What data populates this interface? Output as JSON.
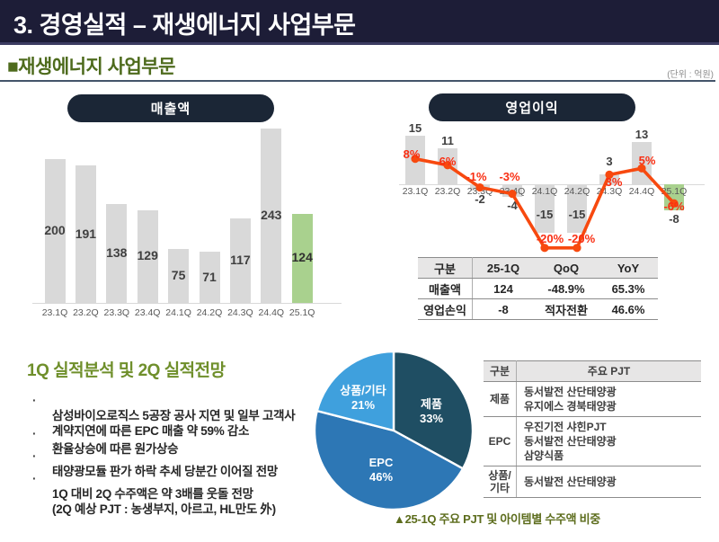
{
  "header": {
    "title": "3. 경영실적 – 재생에너지 사업부문"
  },
  "section": {
    "title": "■재생에너지 사업부문",
    "unit_note": "(단위 : 억원)"
  },
  "chart_data": [
    {
      "type": "bar",
      "name": "revenue",
      "title": "매출액",
      "categories": [
        "23.1Q",
        "23.2Q",
        "23.3Q",
        "23.4Q",
        "24.1Q",
        "24.2Q",
        "24.3Q",
        "24.4Q",
        "25.1Q"
      ],
      "values": [
        200,
        191,
        138,
        129,
        75,
        71,
        117,
        243,
        124
      ],
      "highlight_index": 8,
      "bar_color": "#d9d9d9",
      "highlight_color": "#a9d18e",
      "ylim": [
        0,
        260
      ]
    },
    {
      "type": "bar+line",
      "name": "operating-profit",
      "title": "영업이익",
      "categories": [
        "23.1Q",
        "23.2Q",
        "23.3Q",
        "23.4Q",
        "24.1Q",
        "24.2Q",
        "24.3Q",
        "24.4Q",
        "25.1Q"
      ],
      "series": [
        {
          "name": "operating-profit-bars",
          "type": "bar",
          "values": [
            15,
            11,
            -2,
            -4,
            -15,
            -15,
            3,
            13,
            -8
          ]
        },
        {
          "name": "operating-margin-line",
          "type": "line",
          "values": [
            8,
            6,
            -1,
            -3,
            -20,
            -20,
            3,
            5,
            -6
          ],
          "labels": [
            "8%",
            "6%",
            "-1%",
            "-3%",
            "-20%",
            "-20%",
            "3%",
            "5%",
            "-6%"
          ]
        }
      ],
      "highlight_index": 8,
      "bar_color": "#d9d9d9",
      "highlight_color": "#a9d18e",
      "line_color": "#f7490f",
      "line_label_color": "#f92e12"
    },
    {
      "type": "pie",
      "name": "order-mix",
      "slices": [
        {
          "label": "제품",
          "pct": 33,
          "color": "#1f4e63"
        },
        {
          "label": "EPC",
          "pct": 46,
          "color": "#2d77b5"
        },
        {
          "label": "상품/기타",
          "pct": 21,
          "color": "#3fa0dd"
        }
      ]
    }
  ],
  "summary_table": {
    "headers": [
      "구분",
      "25-1Q",
      "QoQ",
      "YoY"
    ],
    "rows": [
      [
        "매출액",
        "124",
        "-48.9%",
        "65.3%"
      ],
      [
        "영업손익",
        "-8",
        "적자전환",
        "46.6%"
      ]
    ]
  },
  "analysis": {
    "heading": "1Q 실적분석 및 2Q 실적전망",
    "bullets": [
      "삼성바이오로직스 5공장 공사 지연 및 일부 고객사\n계약지연에 따른 EPC 매출 약 59% 감소",
      "환율상승에 따른 원가상승",
      "태양광모듈 판가 하락 추세 당분간 이어질 전망",
      "1Q 대비 2Q 수주액은 약 3배를 웃돌 전망\n(2Q 예상 PJT : 농생부지, 아르고, HL만도 外)"
    ]
  },
  "pjt_table": {
    "headers": [
      "구분",
      "주요 PJT"
    ],
    "rows": [
      {
        "category": "제품",
        "projects": [
          "동서발전 산단태양광",
          "유지에스 경북태양광"
        ]
      },
      {
        "category": "EPC",
        "projects": [
          "우진기전 샤힌PJT",
          "동서발전 산단태양광",
          "삼양식품"
        ]
      },
      {
        "category": "상품/기타",
        "projects": [
          "동서발전 산단태양광"
        ]
      }
    ]
  },
  "caption": "▲25-1Q 주요 PJT 및 아이템별 수주액 비중"
}
